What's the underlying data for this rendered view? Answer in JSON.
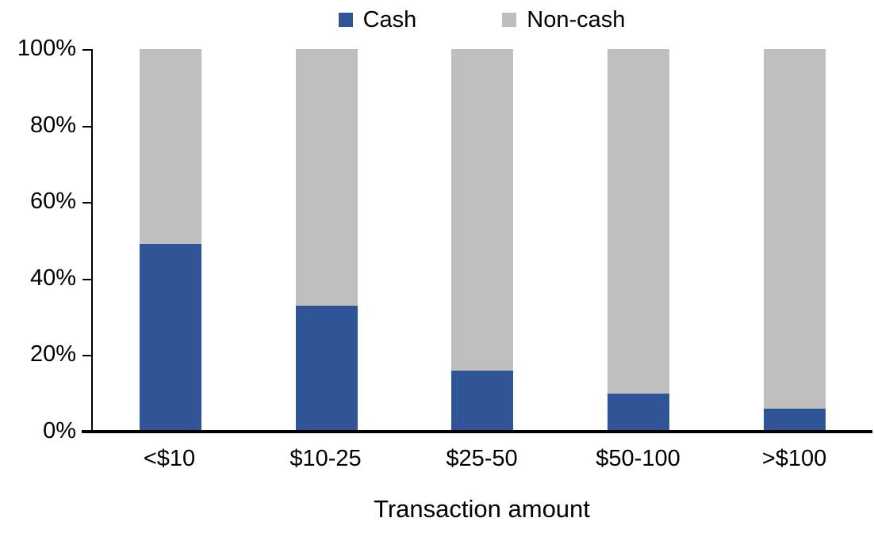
{
  "legend": {
    "items": [
      {
        "label": "Cash",
        "color": "#2F5597"
      },
      {
        "label": "Non-cash",
        "color": "#BFBFBF"
      }
    ]
  },
  "chart_data": {
    "type": "bar",
    "stacked": true,
    "orientation": "vertical",
    "title": "",
    "xlabel": "Transaction amount",
    "ylabel": "",
    "categories": [
      "<$10",
      "$10-25",
      "$25-50",
      "$50-100",
      ">$100"
    ],
    "series": [
      {
        "name": "Cash",
        "color": "#2F5597",
        "values": [
          49,
          33,
          16,
          10,
          6
        ]
      },
      {
        "name": "Non-cash",
        "color": "#BFBFBF",
        "values": [
          51,
          67,
          84,
          90,
          94
        ]
      }
    ],
    "ylim": [
      0,
      100
    ],
    "yticks": [
      "0%",
      "20%",
      "40%",
      "60%",
      "80%",
      "100%"
    ],
    "ytick_values": [
      0,
      20,
      40,
      60,
      80,
      100
    ],
    "grid": false,
    "legend_position": "top-center"
  },
  "colors": {
    "axis": "#000000",
    "text": "#000000",
    "background": "#FFFFFF"
  }
}
